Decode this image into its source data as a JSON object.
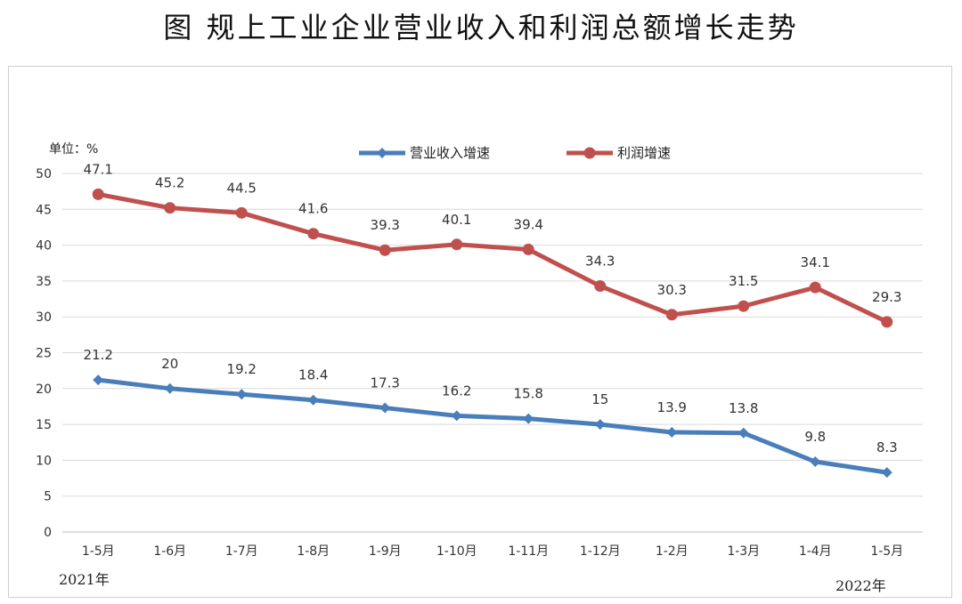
{
  "title": "图  规上工业企业营业收入和利润总额增长走势",
  "unit_label": "单位：%",
  "year_start": "2021年",
  "year_end": "2022年",
  "chart_data": {
    "type": "line",
    "categories": [
      "1-5月",
      "1-6月",
      "1-7月",
      "1-8月",
      "1-9月",
      "1-10月",
      "1-11月",
      "1-12月",
      "1-2月",
      "1-3月",
      "1-4月",
      "1-5月"
    ],
    "series": [
      {
        "name": "营业收入增速",
        "color": "#4a7ebb",
        "marker": "diamond",
        "values": [
          21.2,
          20,
          19.2,
          18.4,
          17.3,
          16.2,
          15.8,
          15,
          13.9,
          13.8,
          9.8,
          8.3
        ],
        "labels": [
          "21.2",
          "20",
          "19.2",
          "18.4",
          "17.3",
          "16.2",
          "15.8",
          "15",
          "13.9",
          "13.8",
          "9.8",
          "8.3"
        ]
      },
      {
        "name": "利润增速",
        "color": "#c0504d",
        "marker": "circle",
        "values": [
          47.1,
          45.2,
          44.5,
          41.6,
          39.3,
          40.1,
          39.4,
          34.3,
          30.3,
          31.5,
          34.1,
          29.3
        ],
        "labels": [
          "47.1",
          "45.2",
          "44.5",
          "41.6",
          "39.3",
          "40.1",
          "39.4",
          "34.3",
          "30.3",
          "31.5",
          "34.1",
          "29.3"
        ]
      }
    ],
    "ylim": [
      0,
      50
    ],
    "yticks": [
      "0",
      "5",
      "10",
      "15",
      "20",
      "25",
      "30",
      "35",
      "40",
      "45",
      "50"
    ],
    "grid": true,
    "legend": "top-center"
  }
}
